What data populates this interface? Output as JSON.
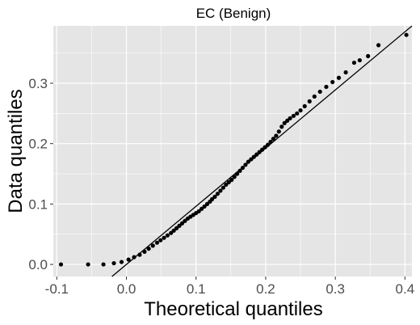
{
  "chart_data": {
    "type": "scatter",
    "title": "EC (Benign)",
    "xlabel": "Theoretical quantiles",
    "ylabel": "Data quantiles",
    "xlim": [
      -0.105,
      0.41
    ],
    "ylim": [
      -0.02,
      0.395
    ],
    "x_ticks": [
      -0.1,
      0.0,
      0.1,
      0.2,
      0.3,
      0.4
    ],
    "x_tick_labels": [
      "-0.1",
      "0.0",
      "0.1",
      "0.2",
      "0.3",
      "0.4"
    ],
    "y_ticks": [
      0.0,
      0.1,
      0.2,
      0.3
    ],
    "y_tick_labels": [
      "0.0",
      "0.1",
      "0.2",
      "0.3"
    ],
    "grid": true,
    "background_color": "#e5e5e5",
    "grid_color": "#ffffff",
    "point_color": "#000000",
    "line_color": "#000000",
    "reference_line": {
      "slope": 0.963,
      "intercept": 0.0
    },
    "points": [
      [
        -0.094,
        0.0
      ],
      [
        -0.055,
        0.0
      ],
      [
        -0.033,
        0.0
      ],
      [
        -0.018,
        0.002
      ],
      [
        -0.007,
        0.004
      ],
      [
        0.003,
        0.008
      ],
      [
        0.011,
        0.012
      ],
      [
        0.019,
        0.016
      ],
      [
        0.026,
        0.021
      ],
      [
        0.032,
        0.026
      ],
      [
        0.038,
        0.031
      ],
      [
        0.044,
        0.036
      ],
      [
        0.049,
        0.04
      ],
      [
        0.054,
        0.044
      ],
      [
        0.059,
        0.048
      ],
      [
        0.064,
        0.052
      ],
      [
        0.068,
        0.056
      ],
      [
        0.072,
        0.06
      ],
      [
        0.076,
        0.064
      ],
      [
        0.08,
        0.068
      ],
      [
        0.084,
        0.072
      ],
      [
        0.088,
        0.076
      ],
      [
        0.092,
        0.079
      ],
      [
        0.096,
        0.082
      ],
      [
        0.1,
        0.085
      ],
      [
        0.104,
        0.088
      ],
      [
        0.108,
        0.092
      ],
      [
        0.112,
        0.096
      ],
      [
        0.116,
        0.1
      ],
      [
        0.12,
        0.104
      ],
      [
        0.123,
        0.108
      ],
      [
        0.127,
        0.112
      ],
      [
        0.131,
        0.117
      ],
      [
        0.135,
        0.122
      ],
      [
        0.139,
        0.127
      ],
      [
        0.143,
        0.132
      ],
      [
        0.147,
        0.136
      ],
      [
        0.151,
        0.14
      ],
      [
        0.155,
        0.145
      ],
      [
        0.159,
        0.15
      ],
      [
        0.163,
        0.155
      ],
      [
        0.167,
        0.16
      ],
      [
        0.171,
        0.165
      ],
      [
        0.175,
        0.17
      ],
      [
        0.179,
        0.174
      ],
      [
        0.183,
        0.178
      ],
      [
        0.187,
        0.182
      ],
      [
        0.191,
        0.186
      ],
      [
        0.195,
        0.19
      ],
      [
        0.199,
        0.194
      ],
      [
        0.203,
        0.198
      ],
      [
        0.207,
        0.203
      ],
      [
        0.211,
        0.208
      ],
      [
        0.215,
        0.213
      ],
      [
        0.219,
        0.22
      ],
      [
        0.223,
        0.228
      ],
      [
        0.227,
        0.234
      ],
      [
        0.231,
        0.238
      ],
      [
        0.235,
        0.242
      ],
      [
        0.24,
        0.246
      ],
      [
        0.245,
        0.25
      ],
      [
        0.25,
        0.255
      ],
      [
        0.256,
        0.262
      ],
      [
        0.263,
        0.27
      ],
      [
        0.27,
        0.278
      ],
      [
        0.278,
        0.286
      ],
      [
        0.287,
        0.294
      ],
      [
        0.296,
        0.302
      ],
      [
        0.305,
        0.309
      ],
      [
        0.315,
        0.318
      ],
      [
        0.327,
        0.334
      ],
      [
        0.335,
        0.338
      ],
      [
        0.347,
        0.345
      ],
      [
        0.362,
        0.363
      ],
      [
        0.402,
        0.38
      ]
    ]
  }
}
